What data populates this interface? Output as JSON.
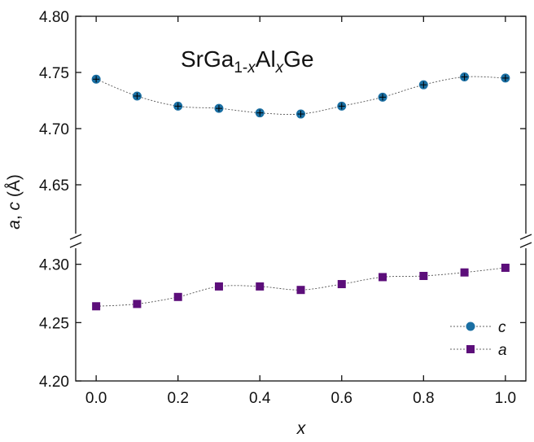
{
  "chart_data": {
    "type": "scatter",
    "title": {
      "base": "SrGa",
      "sub1": "1-",
      "sub1_italic": "x",
      "middle": "Al",
      "sub2_italic": "x",
      "end": "Ge"
    },
    "xlabel": "x",
    "ylabel": {
      "part1": "a",
      "sep": ", ",
      "part2": "c",
      "unit": " (Å)"
    },
    "x_ticks": [
      "0.0",
      "0.2",
      "0.4",
      "0.6",
      "0.8",
      "1.0"
    ],
    "x_tick_values": [
      0.0,
      0.2,
      0.4,
      0.6,
      0.8,
      1.0
    ],
    "xlim": [
      -0.05,
      1.05
    ],
    "y_axis_break": true,
    "upper_panel": {
      "ylim": [
        4.6,
        4.8
      ],
      "ticks": [
        "4.65",
        "4.70",
        "4.75",
        "4.80"
      ],
      "tick_values": [
        4.65,
        4.7,
        4.75,
        4.8
      ]
    },
    "lower_panel": {
      "ylim": [
        4.2,
        4.32
      ],
      "ticks": [
        "4.20",
        "4.25",
        "4.30"
      ],
      "tick_values": [
        4.2,
        4.25,
        4.3
      ]
    },
    "x": [
      0.0,
      0.1,
      0.2,
      0.3,
      0.4,
      0.5,
      0.6,
      0.7,
      0.8,
      0.9,
      1.0
    ],
    "series": [
      {
        "name": "c",
        "marker": "circle",
        "color": "#1a6fa3",
        "panel": "upper",
        "values": [
          4.744,
          4.729,
          4.72,
          4.718,
          4.714,
          4.713,
          4.72,
          4.728,
          4.739,
          4.746,
          4.745
        ]
      },
      {
        "name": "a",
        "marker": "square",
        "color": "#5c0e7a",
        "panel": "lower",
        "values": [
          4.264,
          4.266,
          4.272,
          4.281,
          4.281,
          4.278,
          4.283,
          4.289,
          4.29,
          4.293,
          4.297
        ]
      }
    ],
    "legend": {
      "placement": "bottom-right",
      "entries": [
        "c",
        "a"
      ]
    },
    "grid": false
  }
}
